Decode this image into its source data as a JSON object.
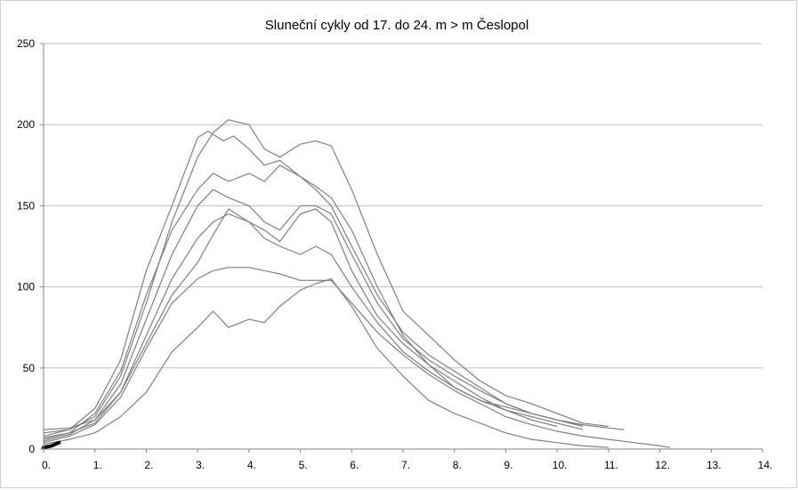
{
  "chart_data": {
    "type": "line",
    "title": "Sluneční cykly od 17. do 24. m > m  Česlopol",
    "xlabel": "",
    "ylabel": "",
    "xlim": [
      0,
      14
    ],
    "ylim": [
      0,
      250
    ],
    "x_tick_labels": [
      "0.",
      "1.",
      "2.",
      "3.",
      "4.",
      "5.",
      "6.",
      "7.",
      "8.",
      "9.",
      "10.",
      "11.",
      "12.",
      "13.",
      "14."
    ],
    "y_tick_labels": [
      "0",
      "50",
      "100",
      "150",
      "200",
      "250"
    ],
    "y_ticks": [
      0,
      50,
      100,
      150,
      200,
      250
    ],
    "grid": "horizontal",
    "legend": "none",
    "colors": {
      "series": "#808080",
      "current": "#000000",
      "grid": "#bfbfbf",
      "axis": "#808080"
    },
    "series": [
      {
        "x": [
          0,
          0.5,
          1,
          1.5,
          2,
          2.5,
          3,
          3.2,
          3.5,
          3.7,
          4,
          4.3,
          4.6,
          5,
          5.3,
          5.6,
          6,
          6.5,
          7,
          7.5,
          8,
          8.5,
          9,
          9.5,
          10,
          10.5,
          11,
          11.3
        ],
        "y": [
          8,
          12,
          25,
          55,
          110,
          150,
          192,
          196,
          190,
          193,
          185,
          175,
          178,
          168,
          162,
          155,
          135,
          100,
          70,
          52,
          38,
          30,
          26,
          22,
          18,
          15,
          13,
          12
        ]
      },
      {
        "x": [
          0,
          0.5,
          1,
          1.5,
          2,
          2.5,
          3,
          3.3,
          3.6,
          4,
          4.3,
          4.6,
          5,
          5.3,
          5.6,
          6,
          6.5,
          7,
          7.5,
          8,
          8.5,
          9,
          9.5,
          10,
          10.5,
          11
        ],
        "y": [
          10,
          12,
          20,
          45,
          90,
          140,
          180,
          195,
          203,
          200,
          185,
          180,
          188,
          190,
          187,
          160,
          120,
          85,
          70,
          55,
          42,
          33,
          28,
          22,
          16,
          14
        ]
      },
      {
        "x": [
          0,
          0.5,
          1,
          1.5,
          2,
          2.5,
          3,
          3.3,
          3.6,
          4,
          4.3,
          4.6,
          5,
          5.3,
          5.6,
          6,
          6.5,
          7,
          7.5,
          8,
          8.5,
          9,
          9.5,
          10,
          10.5
        ],
        "y": [
          7,
          10,
          22,
          48,
          95,
          135,
          160,
          170,
          165,
          170,
          165,
          175,
          168,
          160,
          150,
          125,
          95,
          72,
          58,
          48,
          38,
          28,
          22,
          18,
          14
        ]
      },
      {
        "x": [
          0,
          0.5,
          1,
          1.5,
          2,
          2.5,
          3,
          3.3,
          3.6,
          4,
          4.3,
          4.6,
          5,
          5.3,
          5.6,
          6,
          6.5,
          7,
          7.5,
          8,
          8.5,
          9,
          9.5,
          10,
          10.5
        ],
        "y": [
          5,
          9,
          18,
          40,
          80,
          120,
          150,
          160,
          155,
          150,
          140,
          135,
          150,
          150,
          145,
          120,
          90,
          68,
          55,
          45,
          36,
          28,
          22,
          18,
          15
        ]
      },
      {
        "x": [
          0,
          0.5,
          1,
          1.5,
          2,
          2.5,
          3,
          3.3,
          3.6,
          4,
          4.3,
          4.6,
          5,
          5.3,
          5.6,
          6,
          6.5,
          7,
          7.5,
          8,
          8.5,
          9,
          9.5,
          10
        ],
        "y": [
          12,
          13,
          18,
          35,
          70,
          105,
          130,
          140,
          145,
          140,
          135,
          128,
          145,
          148,
          140,
          110,
          82,
          65,
          52,
          42,
          32,
          24,
          18,
          14
        ]
      },
      {
        "x": [
          0,
          0.5,
          1,
          1.5,
          2,
          2.5,
          3,
          3.3,
          3.6,
          4,
          4.3,
          4.6,
          5,
          5.3,
          5.6,
          6,
          6.5,
          7,
          7.5,
          8,
          8.5,
          9,
          9.5,
          10,
          10.5
        ],
        "y": [
          6,
          10,
          16,
          35,
          65,
          95,
          115,
          132,
          148,
          140,
          130,
          125,
          120,
          125,
          120,
          100,
          78,
          60,
          48,
          38,
          30,
          24,
          20,
          16,
          12
        ]
      },
      {
        "x": [
          0,
          0.5,
          1,
          1.5,
          2,
          2.5,
          3,
          3.3,
          3.6,
          4,
          4.3,
          4.6,
          5,
          5.3,
          5.6,
          6,
          6.5,
          7,
          7.5,
          8,
          8.5,
          9,
          9.5,
          10,
          10.5,
          11,
          11.5,
          12,
          12.2
        ],
        "y": [
          4,
          8,
          15,
          32,
          62,
          90,
          105,
          110,
          112,
          112,
          110,
          108,
          104,
          104,
          104,
          90,
          72,
          58,
          46,
          36,
          28,
          20,
          15,
          11,
          8,
          6,
          4,
          2,
          1
        ]
      },
      {
        "x": [
          0,
          0.5,
          1,
          1.5,
          2,
          2.5,
          3,
          3.3,
          3.6,
          4,
          4.3,
          4.6,
          5,
          5.3,
          5.6,
          6,
          6.5,
          7,
          7.5,
          8,
          8.5,
          9,
          9.5,
          10,
          10.5,
          11
        ],
        "y": [
          3,
          6,
          10,
          20,
          35,
          60,
          75,
          85,
          75,
          80,
          78,
          88,
          98,
          102,
          105,
          88,
          62,
          45,
          30,
          22,
          16,
          10,
          6,
          4,
          2,
          1
        ]
      }
    ],
    "current_cycle": {
      "x": [
        0,
        0.15,
        0.3
      ],
      "y": [
        1,
        2,
        4
      ]
    }
  }
}
